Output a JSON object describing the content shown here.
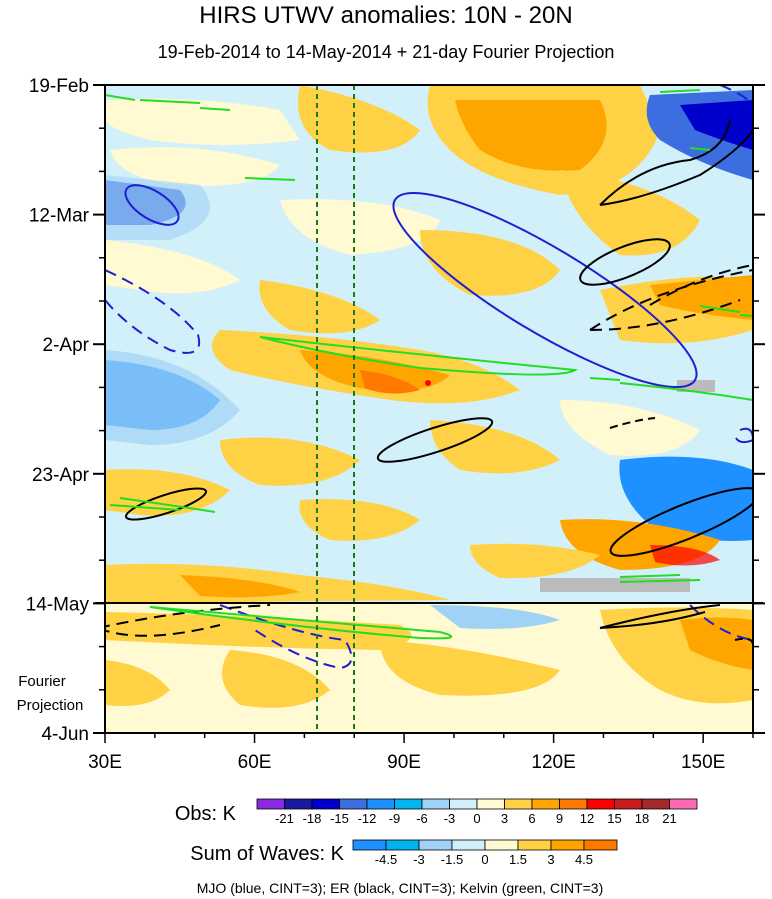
{
  "chart_data": {
    "type": "heatmap",
    "title": "HIRS UTWV anomalies: 10N - 20N",
    "subtitle": "19-Feb-2014 to 14-May-2014 + 21-day Fourier Projection",
    "x_axis": {
      "range": [
        30,
        160
      ],
      "ticks": [
        30,
        60,
        90,
        120,
        150
      ],
      "tick_labels": [
        "30E",
        "60E",
        "90E",
        "120E",
        "150E"
      ]
    },
    "y_axis": {
      "range_days": [
        0,
        105
      ],
      "ticks": [
        0,
        21,
        42,
        63,
        84,
        105
      ],
      "tick_labels": [
        "19-Feb",
        "12-Mar",
        "2-Apr",
        "23-Apr",
        "14-May",
        "4-Jun"
      ],
      "projection_label_lines": [
        "Fourier",
        "Projection"
      ],
      "observation_end_day": 84
    },
    "reference_lines_lon": [
      72.5,
      80
    ],
    "obs_colorbar": {
      "label": "Obs: K",
      "levels": [
        "-21",
        "-18",
        "-15",
        "-12",
        "-9",
        "-6",
        "-3",
        "0",
        "3",
        "6",
        "9",
        "12",
        "15",
        "18",
        "21"
      ],
      "colors": [
        "#8a2be2",
        "#1a1aa0",
        "#0000cd",
        "#3c6ee0",
        "#1e90ff",
        "#00b4f0",
        "#a0d2f5",
        "#d2f0fa",
        "#fffad2",
        "#ffd246",
        "#ffa500",
        "#ff7800",
        "#ff0000",
        "#c81e1e",
        "#a52a2a",
        "#ff69b4"
      ]
    },
    "waves_colorbar": {
      "label": "Sum of Waves: K",
      "levels": [
        "-4.5",
        "-3",
        "-1.5",
        "0",
        "1.5",
        "3",
        "4.5"
      ],
      "colors": [
        "#1e90ff",
        "#00b4f0",
        "#a0d2f5",
        "#d2f0fa",
        "#fffad2",
        "#ffd246",
        "#ffa500",
        "#ff7800"
      ]
    },
    "legend_note": "MJO (blue, CINT=3); ER (black, CINT=3); Kelvin (green, CINT=3)",
    "wave_colors": {
      "mjo": "#1f1fd0",
      "er": "#000000",
      "kelvin": "#22dd22"
    }
  }
}
